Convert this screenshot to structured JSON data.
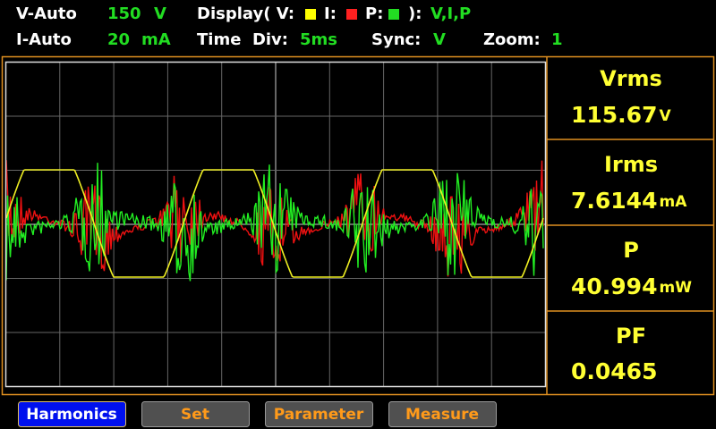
{
  "status": {
    "v_range": {
      "label": "V-Auto",
      "value": 150,
      "unit": "V"
    },
    "i_range": {
      "label": "I-Auto",
      "value": 20,
      "unit": "mA"
    },
    "display": {
      "label": "Display( V:",
      "i_label": "I:",
      "p_label": "P:",
      "close": "):",
      "value": "V,I,P"
    },
    "time_div": {
      "label": "Time  Div:",
      "value": "5ms"
    },
    "sync": {
      "label": "Sync:",
      "value": "V"
    },
    "zoom": {
      "label": "Zoom:",
      "value": 1
    }
  },
  "measurements": [
    {
      "name": "Vrms",
      "value": 115.67,
      "unit": "V"
    },
    {
      "name": "Irms",
      "value": 7.6144,
      "unit": "mA"
    },
    {
      "name": "P",
      "value": 40.994,
      "unit": "mW"
    },
    {
      "name": "PF",
      "value": 0.0465
    }
  ],
  "buttons": [
    "Harmonics",
    "Set",
    "Parameter",
    "Measure"
  ]
}
